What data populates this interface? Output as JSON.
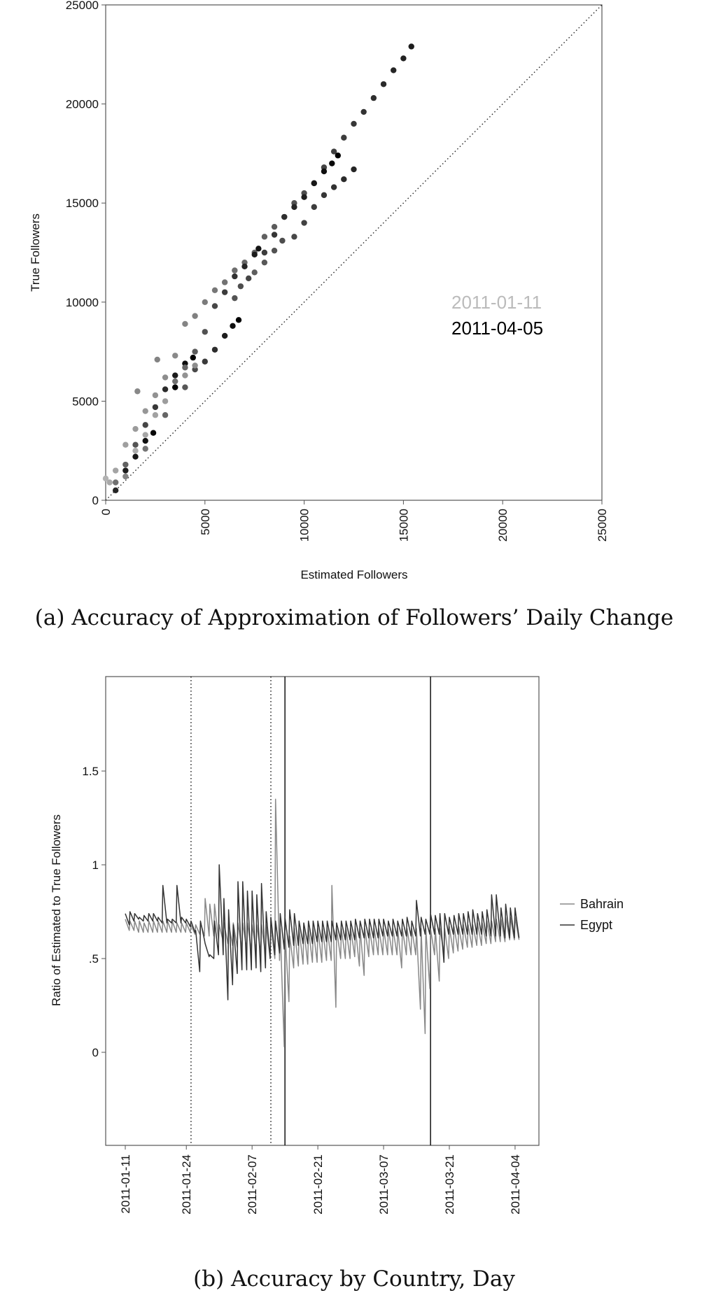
{
  "chart_data": [
    {
      "type": "scatter",
      "title": "",
      "caption": "(a) Accuracy of Approximation of Followers’ Daily Change",
      "xlabel": "Estimated Followers",
      "ylabel": "True Followers",
      "xlim": [
        0,
        25000
      ],
      "ylim": [
        0,
        25000
      ],
      "xticks": [
        "0",
        "5000",
        "10000",
        "15000",
        "20000",
        "25000"
      ],
      "yticks": [
        "0",
        "5000",
        "10000",
        "15000",
        "20000",
        "25000"
      ],
      "reference_line": "y = x (dotted)",
      "legend": {
        "placement": "right-middle",
        "entries": [
          {
            "label": "2011-01-11",
            "color": "#bbbbbb"
          },
          {
            "label": "2011-04-05",
            "color": "#000000"
          }
        ]
      },
      "color_scale": {
        "early": "#bbbbbb",
        "late": "#000000"
      },
      "tracks": [
        {
          "shade_start": 0.1,
          "shade_end": 0.85,
          "points": [
            [
              200,
              900
            ],
            [
              500,
              1500
            ],
            [
              1000,
              2800
            ],
            [
              1500,
              3600
            ],
            [
              2000,
              4500
            ],
            [
              2500,
              5300
            ],
            [
              3000,
              6200
            ],
            [
              3500,
              7300
            ],
            [
              4000,
              8900
            ],
            [
              4500,
              9300
            ],
            [
              5000,
              10000
            ],
            [
              5500,
              10600
            ],
            [
              6000,
              11000
            ],
            [
              6500,
              11600
            ],
            [
              7000,
              12000
            ],
            [
              7500,
              12500
            ],
            [
              8000,
              13300
            ],
            [
              8500,
              13800
            ],
            [
              9000,
              14300
            ],
            [
              9500,
              15000
            ],
            [
              10000,
              15500
            ],
            [
              10500,
              16000
            ],
            [
              11000,
              16800
            ],
            [
              11500,
              17600
            ],
            [
              12000,
              18300
            ],
            [
              12500,
              19000
            ],
            [
              13000,
              19600
            ],
            [
              13500,
              20300
            ],
            [
              14000,
              21000
            ],
            [
              14500,
              21700
            ],
            [
              15000,
              22300
            ],
            [
              15400,
              22900
            ]
          ]
        },
        {
          "shade_start": 0.4,
          "shade_end": 1.0,
          "points": [
            [
              500,
              900
            ],
            [
              1000,
              1800
            ],
            [
              1500,
              2800
            ],
            [
              2000,
              3800
            ],
            [
              2500,
              4700
            ],
            [
              3000,
              5600
            ],
            [
              3500,
              6300
            ],
            [
              4000,
              6900
            ],
            [
              4400,
              7200
            ]
          ]
        },
        {
          "shade_start": 0.4,
          "shade_end": 0.9,
          "points": [
            [
              3500,
              6000
            ],
            [
              4000,
              6700
            ],
            [
              4500,
              7500
            ],
            [
              5000,
              8500
            ],
            [
              5500,
              9800
            ],
            [
              6000,
              10500
            ],
            [
              6500,
              11300
            ],
            [
              7000,
              11800
            ],
            [
              7500,
              12400
            ],
            [
              7700,
              12700
            ]
          ]
        },
        {
          "shade_start": 0.55,
          "shade_end": 1.0,
          "points": [
            [
              6500,
              10200
            ],
            [
              6800,
              10800
            ],
            [
              7200,
              11200
            ],
            [
              8000,
              12500
            ],
            [
              8500,
              13400
            ],
            [
              9000,
              14300
            ],
            [
              9500,
              14800
            ],
            [
              10000,
              15300
            ],
            [
              10500,
              16000
            ],
            [
              11000,
              16600
            ],
            [
              11400,
              17000
            ],
            [
              11700,
              17400
            ]
          ]
        },
        {
          "shade_start": 0.5,
          "shade_end": 0.8,
          "points": [
            [
              7500,
              11500
            ],
            [
              8000,
              12000
            ],
            [
              8500,
              12600
            ],
            [
              8900,
              13100
            ],
            [
              9500,
              13300
            ],
            [
              10000,
              14000
            ],
            [
              10500,
              14800
            ],
            [
              11000,
              15400
            ],
            [
              11500,
              15800
            ],
            [
              12000,
              16200
            ],
            [
              12500,
              16700
            ]
          ]
        },
        {
          "shade_start": 0.3,
          "shade_end": 1.0,
          "points": [
            [
              1000,
              1200
            ],
            [
              2000,
              2600
            ],
            [
              3000,
              4300
            ],
            [
              4000,
              5700
            ],
            [
              4500,
              6600
            ],
            [
              5000,
              7000
            ],
            [
              5500,
              7600
            ],
            [
              6000,
              8300
            ],
            [
              6400,
              8800
            ],
            [
              6700,
              9100
            ]
          ]
        },
        {
          "shade_start": 0.05,
          "shade_end": 0.3,
          "points": [
            [
              0,
              1100
            ],
            [
              1500,
              2500
            ],
            [
              2000,
              3300
            ],
            [
              2500,
              4300
            ],
            [
              3000,
              5000
            ],
            [
              3500,
              5700
            ],
            [
              4000,
              6300
            ],
            [
              4500,
              6800
            ],
            [
              1600,
              5500
            ],
            [
              2600,
              7100
            ]
          ]
        },
        {
          "shade_start": 0.8,
          "shade_end": 1.0,
          "points": [
            [
              500,
              500
            ],
            [
              1000,
              1500
            ],
            [
              1500,
              2200
            ],
            [
              2000,
              3000
            ],
            [
              2400,
              3400
            ],
            [
              3500,
              5700
            ]
          ]
        }
      ]
    },
    {
      "type": "line",
      "title": "",
      "caption": "(b) Accuracy by Country, Day",
      "xlabel": "",
      "ylabel": "Ratio of Estimated to True Followers",
      "start_date": "2011-01-11",
      "xticks": [
        "2011-01-11",
        "2011-01-24",
        "2011-02-07",
        "2011-02-21",
        "2011-03-07",
        "2011-03-21",
        "2011-04-04"
      ],
      "yticks": [
        {
          "value": 1.5,
          "label": "1.5"
        },
        {
          "value": 1,
          "label": "1"
        },
        {
          "value": 0.5,
          "label": ".5"
        },
        {
          "value": 0,
          "label": "0"
        }
      ],
      "ylim": [
        -0.5,
        2.0
      ],
      "vlines": [
        {
          "date": "2011-01-25",
          "style": "dotted"
        },
        {
          "date": "2011-02-11",
          "style": "dotted"
        },
        {
          "date": "2011-02-14",
          "style": "solid"
        },
        {
          "date": "2011-03-17",
          "style": "solid"
        }
      ],
      "legend": {
        "placement": "right",
        "entries": [
          {
            "label": "Bahrain",
            "color": "#888888"
          },
          {
            "label": "Egypt",
            "color": "#333333"
          }
        ]
      },
      "series": [
        {
          "name": "Bahrain",
          "color": "#888888",
          "daily_high": [
            0.71,
            0.7,
            0.7,
            0.7,
            0.69,
            0.7,
            0.7,
            0.7,
            0.7,
            0.7,
            0.7,
            0.69,
            0.69,
            0.69,
            0.68,
            0.68,
            0.69,
            0.82,
            0.79,
            0.79,
            0.68,
            0.69,
            0.69,
            0.69,
            0.69,
            0.69,
            0.69,
            0.68,
            0.68,
            0.68,
            0.68,
            0.68,
            1.35,
            0.66,
            0.65,
            0.62,
            0.66,
            0.66,
            0.66,
            0.66,
            0.66,
            0.66,
            0.66,
            0.66,
            0.89,
            0.66,
            0.66,
            0.66,
            0.66,
            0.66,
            0.66,
            0.66,
            0.66,
            0.66,
            0.66,
            0.66,
            0.66,
            0.66,
            0.66,
            0.66,
            0.66,
            0.66,
            0.66,
            0.66,
            0.66,
            0.66,
            0.66,
            0.66,
            0.66,
            0.67,
            0.67,
            0.67,
            0.68,
            0.68,
            0.68,
            0.69,
            0.69,
            0.7,
            0.7,
            0.71,
            0.71,
            0.72,
            0.72,
            0.72
          ],
          "daily_low": [
            0.65,
            0.65,
            0.64,
            0.64,
            0.64,
            0.64,
            0.64,
            0.64,
            0.64,
            0.64,
            0.64,
            0.64,
            0.64,
            0.64,
            0.63,
            0.63,
            0.62,
            0.62,
            0.62,
            0.6,
            0.59,
            0.58,
            0.57,
            0.56,
            0.55,
            0.55,
            0.54,
            0.54,
            0.53,
            0.52,
            0.5,
            0.5,
            0.49,
            0.03,
            0.27,
            0.45,
            0.46,
            0.47,
            0.47,
            0.48,
            0.48,
            0.48,
            0.49,
            0.49,
            0.24,
            0.5,
            0.5,
            0.5,
            0.51,
            0.46,
            0.41,
            0.51,
            0.52,
            0.52,
            0.52,
            0.52,
            0.52,
            0.52,
            0.45,
            0.52,
            0.52,
            0.52,
            0.23,
            0.1,
            0.34,
            0.52,
            0.38,
            0.53,
            0.5,
            0.53,
            0.54,
            0.55,
            0.56,
            0.56,
            0.57,
            0.57,
            0.58,
            0.58,
            0.59,
            0.59,
            0.59,
            0.6,
            0.6,
            0.6
          ]
        },
        {
          "name": "Egypt",
          "color": "#333333",
          "daily_high": [
            0.74,
            0.75,
            0.74,
            0.72,
            0.73,
            0.74,
            0.74,
            0.72,
            0.89,
            0.71,
            0.71,
            0.89,
            0.72,
            0.71,
            0.7,
            0.65,
            0.7,
            0.58,
            0.52,
            0.7,
            1.0,
            0.82,
            0.76,
            0.68,
            0.91,
            0.91,
            0.86,
            0.86,
            0.84,
            0.9,
            0.75,
            0.72,
            0.7,
            0.74,
            0.72,
            0.76,
            0.74,
            0.7,
            0.69,
            0.7,
            0.7,
            0.7,
            0.7,
            0.7,
            0.7,
            0.69,
            0.7,
            0.7,
            0.7,
            0.71,
            0.7,
            0.71,
            0.71,
            0.71,
            0.71,
            0.71,
            0.7,
            0.71,
            0.7,
            0.71,
            0.72,
            0.7,
            0.81,
            0.72,
            0.71,
            0.74,
            0.73,
            0.74,
            0.74,
            0.72,
            0.73,
            0.74,
            0.74,
            0.75,
            0.76,
            0.74,
            0.75,
            0.76,
            0.84,
            0.84,
            0.77,
            0.79,
            0.77,
            0.77
          ],
          "daily_low": [
            0.68,
            0.7,
            0.71,
            0.7,
            0.7,
            0.7,
            0.7,
            0.69,
            0.69,
            0.69,
            0.69,
            0.69,
            0.69,
            0.67,
            0.64,
            0.43,
            0.6,
            0.51,
            0.5,
            0.52,
            0.52,
            0.28,
            0.36,
            0.42,
            0.44,
            0.44,
            0.44,
            0.45,
            0.43,
            0.45,
            0.5,
            0.52,
            0.53,
            0.55,
            0.56,
            0.57,
            0.57,
            0.58,
            0.58,
            0.58,
            0.59,
            0.59,
            0.59,
            0.59,
            0.6,
            0.6,
            0.6,
            0.6,
            0.6,
            0.61,
            0.61,
            0.61,
            0.61,
            0.61,
            0.62,
            0.62,
            0.62,
            0.62,
            0.62,
            0.62,
            0.62,
            0.62,
            0.62,
            0.63,
            0.63,
            0.63,
            0.63,
            0.48,
            0.63,
            0.63,
            0.63,
            0.63,
            0.63,
            0.63,
            0.63,
            0.63,
            0.62,
            0.62,
            0.62,
            0.62,
            0.61,
            0.61,
            0.61,
            0.61
          ]
        }
      ]
    }
  ]
}
